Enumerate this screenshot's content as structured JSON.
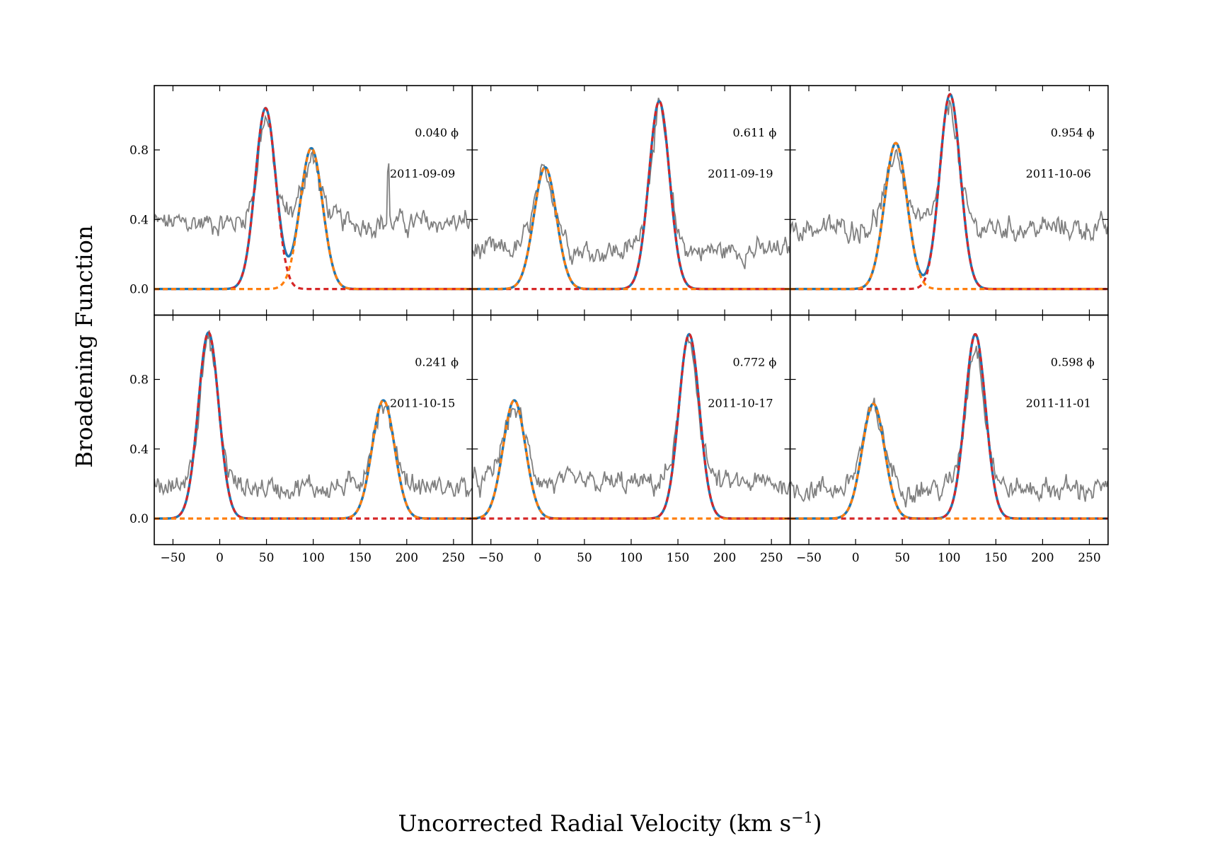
{
  "figure": {
    "ylabel": "Broadening Function",
    "xlabel": "Uncorrected Radial Velocity (km s",
    "xlabel_unit_superscript": "−1",
    "xlabel_close": ")"
  },
  "chart_data": {
    "type": "line",
    "layout": "2 rows x 3 columns, shared axes",
    "xlim": [
      -70,
      270
    ],
    "ylim": [
      -0.15,
      1.17
    ],
    "x_ticks": [
      -50,
      0,
      50,
      100,
      150,
      200,
      250
    ],
    "x_tick_labels": [
      "−50",
      "0",
      "50",
      "100",
      "150",
      "200",
      "250"
    ],
    "y_ticks": [
      0.0,
      0.4,
      0.8
    ],
    "y_tick_labels": [
      "0.0",
      "0.4",
      "0.8"
    ],
    "colors": {
      "observed": "#808080",
      "total_fit": "#1f77b4",
      "primary_component": "#d62728",
      "secondary_component": "#ff7f0e"
    },
    "panels": [
      {
        "phase": "0.040",
        "phase_symbol": "ϕ",
        "date": "2011-09-09",
        "baseline": 0.38,
        "primary": {
          "amp": 1.04,
          "center": 49,
          "sigma": 11
        },
        "secondary": {
          "amp": 0.81,
          "center": 98,
          "sigma": 12
        },
        "spike": {
          "x": 180,
          "height": 0.32
        }
      },
      {
        "phase": "0.611",
        "phase_symbol": "ϕ",
        "date": "2011-09-19",
        "baseline": 0.22,
        "primary": {
          "amp": 1.08,
          "center": 130,
          "sigma": 11
        },
        "secondary": {
          "amp": 0.7,
          "center": 8,
          "sigma": 12
        }
      },
      {
        "phase": "0.954",
        "phase_symbol": "ϕ",
        "date": "2011-10-06",
        "baseline": 0.35,
        "primary": {
          "amp": 1.12,
          "center": 101,
          "sigma": 11
        },
        "secondary": {
          "amp": 0.84,
          "center": 43,
          "sigma": 12
        }
      },
      {
        "phase": "0.241",
        "phase_symbol": "ϕ",
        "date": "2011-10-15",
        "baseline": 0.18,
        "primary": {
          "amp": 1.07,
          "center": -12,
          "sigma": 11
        },
        "secondary": {
          "amp": 0.68,
          "center": 175,
          "sigma": 12
        }
      },
      {
        "phase": "0.772",
        "phase_symbol": "ϕ",
        "date": "2011-10-17",
        "baseline": 0.2,
        "primary": {
          "amp": 1.06,
          "center": 162,
          "sigma": 11
        },
        "secondary": {
          "amp": 0.68,
          "center": -25,
          "sigma": 12
        }
      },
      {
        "phase": "0.598",
        "phase_symbol": "ϕ",
        "date": "2011-11-01",
        "baseline": 0.17,
        "primary": {
          "amp": 1.06,
          "center": 128,
          "sigma": 11
        },
        "secondary": {
          "amp": 0.66,
          "center": 19,
          "sigma": 12
        }
      }
    ]
  }
}
